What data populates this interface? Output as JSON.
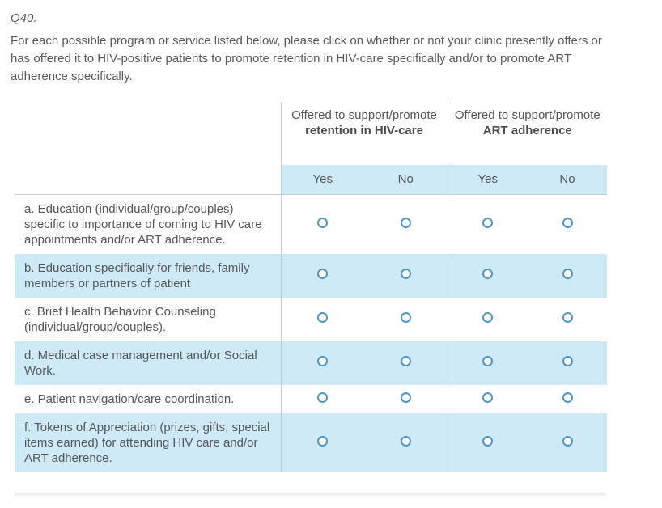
{
  "question": {
    "id_label": "Q40.",
    "prompt": "For each possible program or service listed below, please click on whether or not your clinic presently offers or has offered it to HIV-positive patients to promote retention in HIV-care specifically and/or to promote ART adherence specifically."
  },
  "table": {
    "column_groups": [
      {
        "prefix": "Offered to support/promote",
        "bold": "retention in HIV-care"
      },
      {
        "prefix": "Offered to support/promote",
        "bold": "ART adherence"
      }
    ],
    "choice_headers": [
      "Yes",
      "No",
      "Yes",
      "No"
    ],
    "rows": [
      {
        "label": "a. Education (individual/group/couples) specific to importance of coming to HIV care appointments and/or ART adherence.",
        "highlighted": false
      },
      {
        "label": "b. Education specifically for friends, family members or partners of patient",
        "highlighted": true
      },
      {
        "label": "c. Brief Health Behavior Counseling (individual/group/couples).",
        "highlighted": false
      },
      {
        "label": "d. Medical case management and/or Social Work.",
        "highlighted": true
      },
      {
        "label": "e. Patient navigation/care coordination.",
        "highlighted": false
      },
      {
        "label": "f. Tokens of Appreciation (prizes, gifts, special items earned) for attending HIV care and/or ART adherence.",
        "highlighted": true
      }
    ],
    "radio_state": "unselected"
  },
  "colors": {
    "row_highlight": "#cdeaf6",
    "radio_border": "#4e95cb",
    "column_divider": "#cbcbcb",
    "text": "#55565a",
    "bottom_rule": "#f0f0f0"
  }
}
